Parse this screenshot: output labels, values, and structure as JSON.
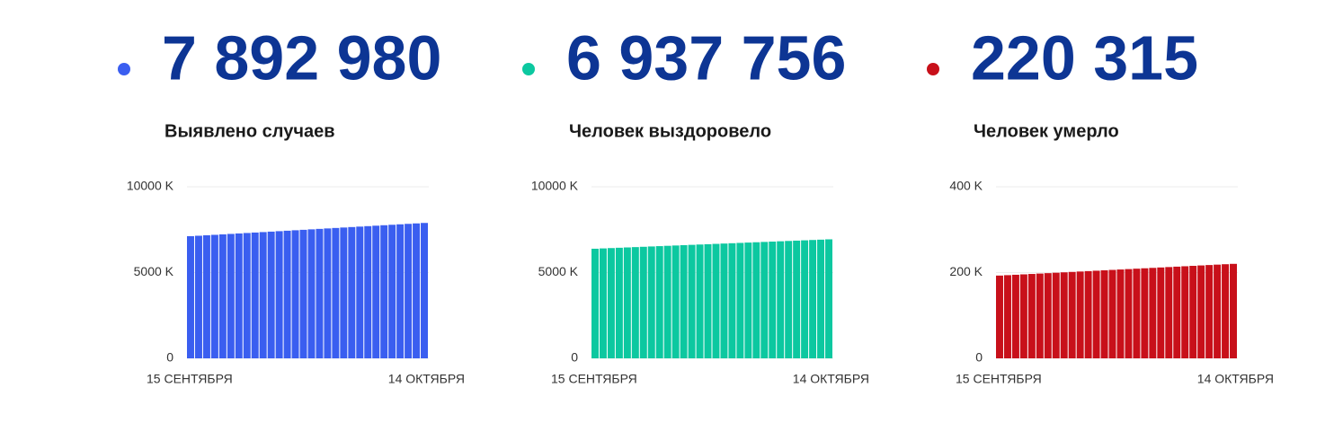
{
  "chart_data": [
    {
      "type": "bar",
      "headline": "7 892 980",
      "title": "Выявлено случаев",
      "color": "#3a5ef0",
      "categories": [
        "15 СЕНТЯБРЯ",
        null,
        null,
        null,
        null,
        null,
        null,
        null,
        null,
        null,
        null,
        null,
        null,
        null,
        null,
        null,
        null,
        null,
        null,
        null,
        null,
        null,
        null,
        null,
        null,
        null,
        null,
        null,
        null,
        "14 ОКТЯБРЯ"
      ],
      "values": [
        7120000,
        7146650,
        7173300,
        7199950,
        7226600,
        7253250,
        7279900,
        7306550,
        7333200,
        7359850,
        7386500,
        7413150,
        7439800,
        7466450,
        7493100,
        7519750,
        7546400,
        7573050,
        7599700,
        7626350,
        7653000,
        7679650,
        7706300,
        7732950,
        7759600,
        7786250,
        7812900,
        7839550,
        7866200,
        7892980
      ],
      "ylim": [
        0,
        10000000
      ],
      "yticks": [
        0,
        {
          "value": 5000000,
          "label": "5000 K"
        },
        {
          "value": 10000000,
          "label": "10000 K"
        }
      ],
      "grid": true
    },
    {
      "type": "bar",
      "headline": "6 937 756",
      "title": "Человек выздоровело",
      "color": "#0cc8a0",
      "categories": [
        "15 СЕНТЯБРЯ",
        null,
        null,
        null,
        null,
        null,
        null,
        null,
        null,
        null,
        null,
        null,
        null,
        null,
        null,
        null,
        null,
        null,
        null,
        null,
        null,
        null,
        null,
        null,
        null,
        null,
        null,
        null,
        null,
        "14 ОКТЯБРЯ"
      ],
      "values": [
        6390000,
        6408870,
        6427740,
        6446610,
        6465480,
        6484350,
        6503220,
        6522090,
        6540960,
        6559830,
        6578700,
        6597570,
        6616440,
        6635310,
        6654180,
        6673050,
        6691920,
        6710790,
        6729660,
        6748530,
        6767400,
        6786270,
        6805140,
        6824010,
        6842880,
        6861750,
        6880620,
        6899490,
        6918360,
        6937756
      ],
      "ylim": [
        0,
        10000000
      ],
      "yticks": [
        0,
        {
          "value": 5000000,
          "label": "5000 K"
        },
        {
          "value": 10000000,
          "label": "10000 K"
        }
      ],
      "grid": true
    },
    {
      "type": "bar",
      "headline": "220 315",
      "title": "Человек умерло",
      "color": "#c8101a",
      "categories": [
        "15 СЕНТЯБРЯ",
        null,
        null,
        null,
        null,
        null,
        null,
        null,
        null,
        null,
        null,
        null,
        null,
        null,
        null,
        null,
        null,
        null,
        null,
        null,
        null,
        null,
        null,
        null,
        null,
        null,
        null,
        null,
        null,
        "14 ОКТЯБРЯ"
      ],
      "values": [
        193000,
        193945,
        194890,
        195835,
        196780,
        197725,
        198670,
        199615,
        200560,
        201505,
        202450,
        203395,
        204340,
        205285,
        206230,
        207175,
        208120,
        209065,
        210010,
        210955,
        211900,
        212845,
        213790,
        214735,
        215680,
        216625,
        217570,
        218515,
        219460,
        220315
      ],
      "ylim": [
        0,
        400000
      ],
      "yticks": [
        0,
        {
          "value": 200000,
          "label": "200 K"
        },
        {
          "value": 400000,
          "label": "400 K"
        }
      ],
      "grid": true
    }
  ]
}
